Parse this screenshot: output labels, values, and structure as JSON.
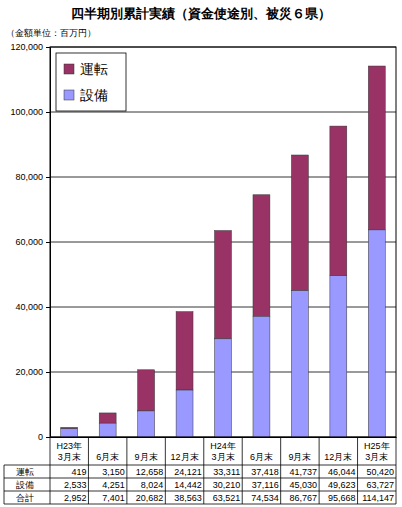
{
  "chart_data": {
    "type": "bar",
    "title": "四半期別累計実績（資金使途別、被災６県）",
    "subtitle": "（金額単位：百万円）",
    "categories": [
      "H23年\n3月末",
      "6月末",
      "9月末",
      "12月末",
      "H24年\n3月末",
      "6月末",
      "9月末",
      "12月末",
      "H25年\n3月末"
    ],
    "series": [
      {
        "name": "運転",
        "color": "#993366",
        "values": [
          419,
          3150,
          12658,
          24121,
          33311,
          37418,
          41737,
          46044,
          50420
        ],
        "value_labels": [
          "419",
          "3,150",
          "12,658",
          "24,121",
          "33,311",
          "37,418",
          "41,737",
          "46,044",
          "50,420"
        ]
      },
      {
        "name": "設備",
        "color": "#9999ff",
        "values": [
          2533,
          4251,
          8024,
          14442,
          30210,
          37116,
          45030,
          49623,
          63727
        ],
        "value_labels": [
          "2,533",
          "4,251",
          "8,024",
          "14,442",
          "30,210",
          "37,116",
          "45,030",
          "49,623",
          "63,727"
        ]
      }
    ],
    "total": {
      "name": "合計",
      "value_labels": [
        "2,952",
        "7,401",
        "20,682",
        "38,563",
        "63,521",
        "74,534",
        "86,767",
        "95,668",
        "114,147"
      ]
    },
    "ylim": [
      0,
      120000
    ],
    "yticks": [
      0,
      {
        "value": 20000,
        "label": "20,000"
      },
      {
        "value": 40000,
        "label": "40,000"
      },
      {
        "value": 60000,
        "label": "60,000"
      },
      {
        "value": 80000,
        "label": "80,000"
      },
      {
        "value": 100000,
        "label": "100,000"
      },
      {
        "value": 120000,
        "label": "120,000"
      }
    ],
    "stacked": true,
    "grid": true,
    "legend": "upper left"
  }
}
